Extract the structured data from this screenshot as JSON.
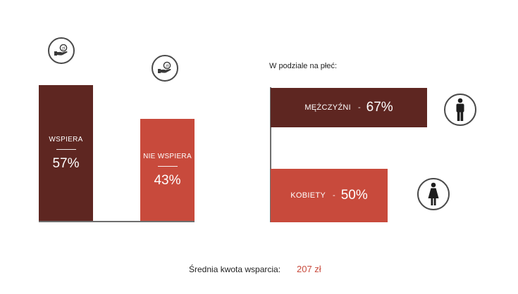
{
  "colors": {
    "dark": "#5e2621",
    "light": "#c84a3c",
    "icon": "#4a4a4a",
    "footer_value": "#c84a3c"
  },
  "chart_data": [
    {
      "type": "bar",
      "categories": [
        "WSPIERA",
        "NIE WSPIERA"
      ],
      "values": [
        57,
        43
      ],
      "value_labels": [
        "57%",
        "43%"
      ],
      "icons": [
        "hand-coin-zloty-icon",
        "hand-coin-zloty-icon"
      ],
      "ylim": [
        0,
        100
      ]
    },
    {
      "type": "bar",
      "orientation": "horizontal",
      "title": "W podziale na płeć:",
      "categories": [
        "MĘŻCZYŹNI",
        "KOBIETY"
      ],
      "values": [
        67,
        50
      ],
      "value_labels": [
        "67%",
        "50%"
      ],
      "separator": "-",
      "icons": [
        "male-figure-icon",
        "female-figure-icon"
      ],
      "xlim": [
        0,
        100
      ]
    }
  ],
  "footer": {
    "label": "Średnia kwota wsparcia:",
    "value": "207 zł"
  }
}
